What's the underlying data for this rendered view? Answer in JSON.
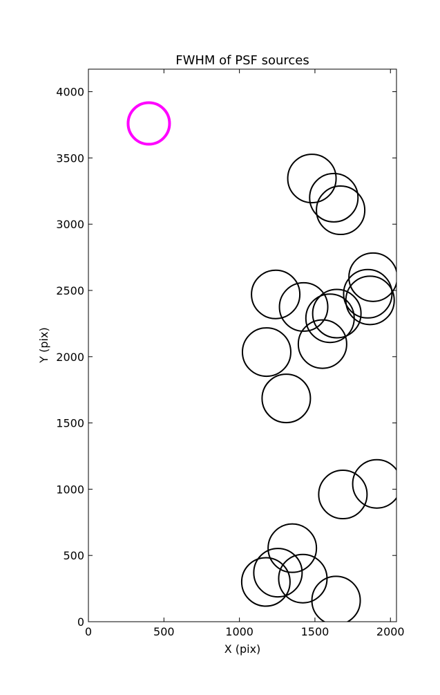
{
  "chart_data": {
    "type": "scatter",
    "title": "FWHM of PSF sources",
    "xlabel": "X (pix)",
    "ylabel": "Y (pix)",
    "xlim": [
      0,
      2040
    ],
    "ylim": [
      0,
      4170
    ],
    "xticks": [
      0,
      500,
      1000,
      1500,
      2000
    ],
    "yticks": [
      0,
      500,
      1000,
      1500,
      2000,
      2500,
      3000,
      3500,
      4000
    ],
    "grid": false,
    "marker": "open-circle",
    "series": [
      {
        "color": "#000000",
        "points": [
          {
            "x": 1480,
            "y": 3345
          },
          {
            "x": 1625,
            "y": 3200
          },
          {
            "x": 1670,
            "y": 3105
          },
          {
            "x": 1885,
            "y": 2600
          },
          {
            "x": 1850,
            "y": 2475
          },
          {
            "x": 1865,
            "y": 2425
          },
          {
            "x": 1240,
            "y": 2470
          },
          {
            "x": 1425,
            "y": 2375
          },
          {
            "x": 1645,
            "y": 2325
          },
          {
            "x": 1600,
            "y": 2290
          },
          {
            "x": 1550,
            "y": 2095
          },
          {
            "x": 1180,
            "y": 2035
          },
          {
            "x": 1310,
            "y": 1685
          },
          {
            "x": 1910,
            "y": 1040
          },
          {
            "x": 1685,
            "y": 960
          },
          {
            "x": 1350,
            "y": 555
          },
          {
            "x": 1255,
            "y": 370
          },
          {
            "x": 1175,
            "y": 300
          },
          {
            "x": 1420,
            "y": 325
          },
          {
            "x": 1640,
            "y": 160
          }
        ]
      },
      {
        "color": "#ff00ff",
        "points": [
          {
            "x": 400,
            "y": 3760
          }
        ]
      }
    ]
  }
}
